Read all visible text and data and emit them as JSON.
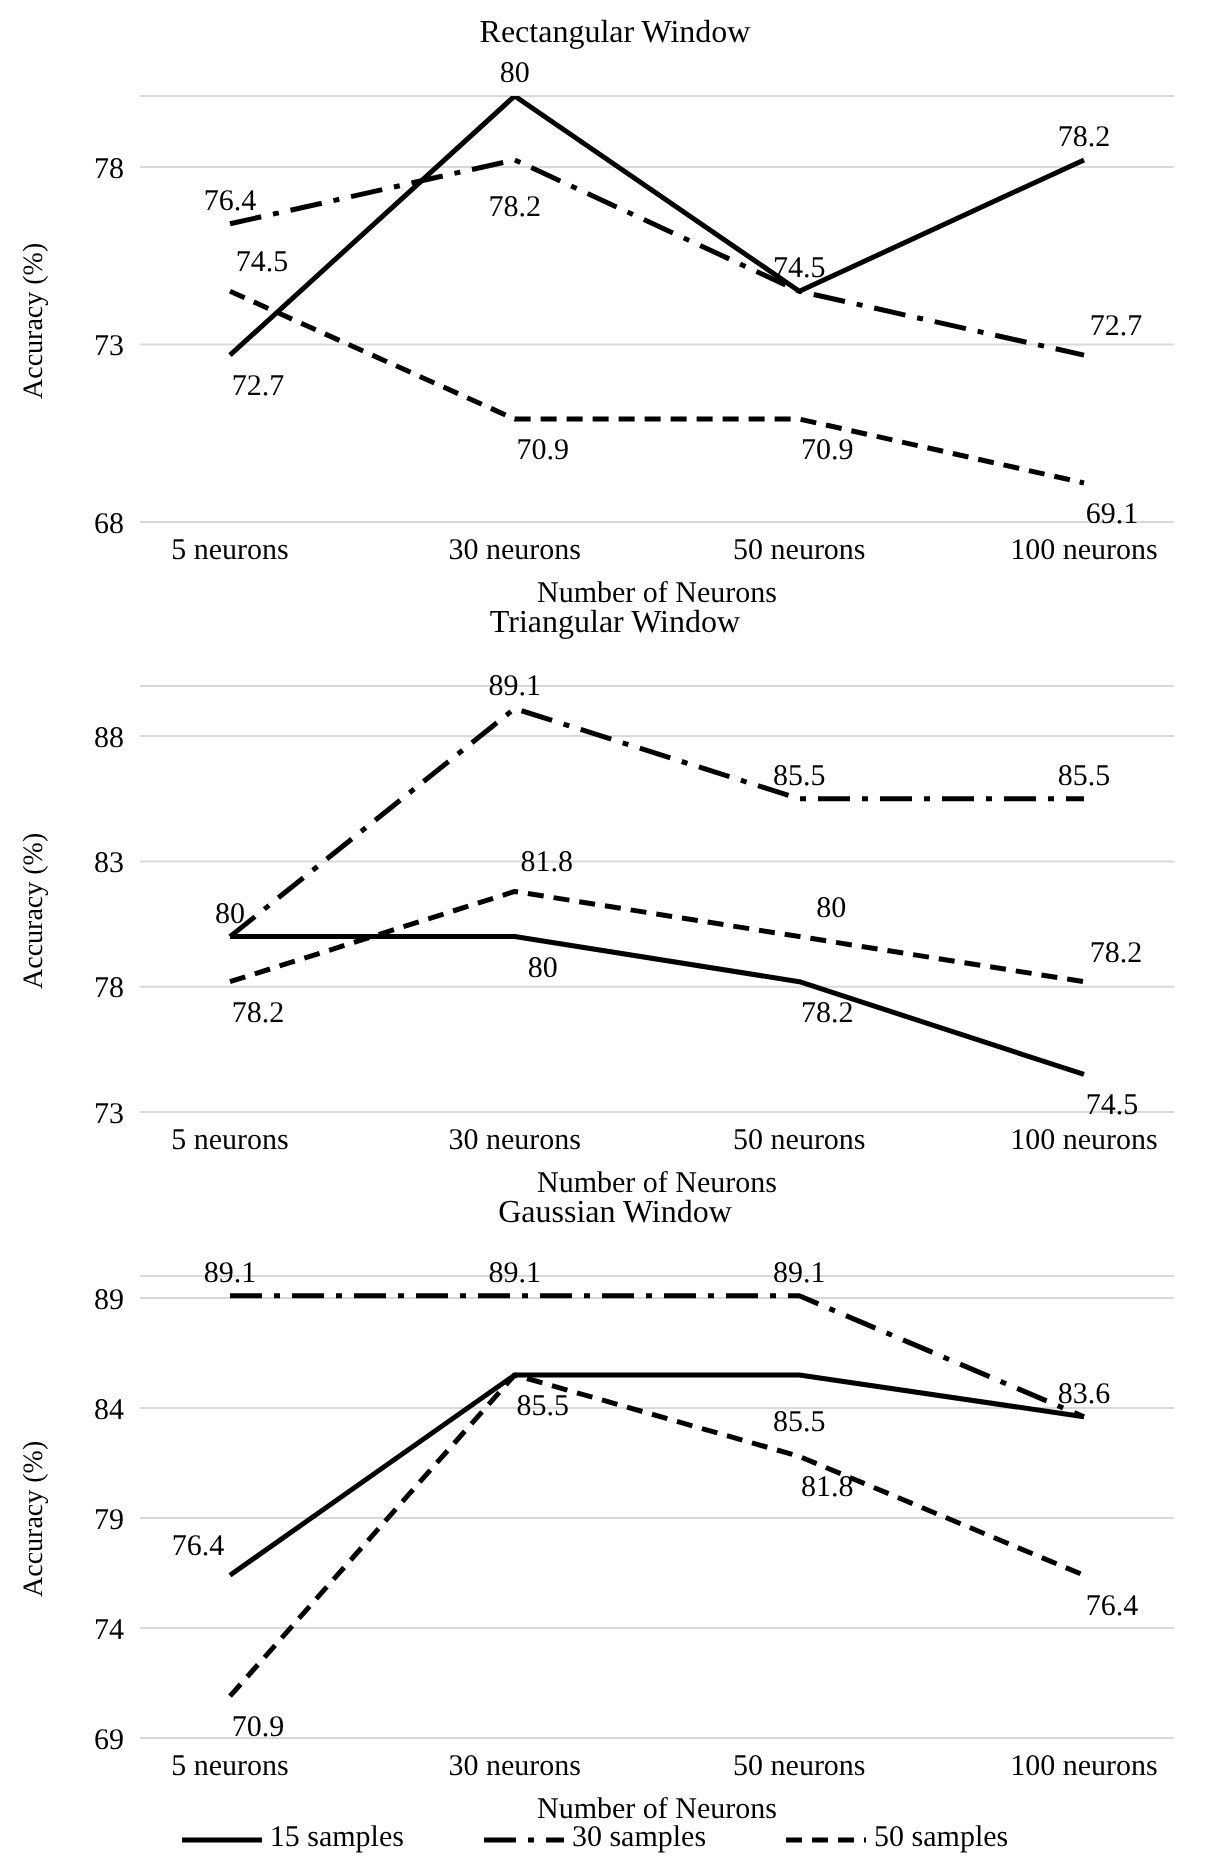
{
  "chart_data": [
    {
      "type": "line",
      "title": "Rectangular Window",
      "xlabel": "Number of Neurons",
      "ylabel": "Accuracy (%)",
      "categories": [
        "5 neurons",
        "30 neurons",
        "50 neurons",
        "100 neurons"
      ],
      "ylim": [
        68,
        80
      ],
      "yticks": [
        68,
        73,
        78
      ],
      "grid": "y",
      "marker": "none",
      "series": [
        {
          "color": "#000000",
          "line_style": "solid",
          "values": [
            72.7,
            80,
            74.5,
            78.2
          ],
          "value_labels": [
            "72.7",
            "80",
            "74.5",
            "78.2"
          ]
        },
        {
          "color": "#000000",
          "line_style": "dashdot",
          "values": [
            76.4,
            78.2,
            74.5,
            72.7
          ],
          "value_labels": [
            "76.4",
            "78.2",
            null,
            "72.7"
          ]
        },
        {
          "color": "#000000",
          "line_style": "dashed",
          "values": [
            74.5,
            70.9,
            70.9,
            69.1
          ],
          "value_labels": [
            "74.5",
            "70.9",
            "70.9",
            "69.1"
          ]
        }
      ]
    },
    {
      "type": "line",
      "title": "Triangular Window",
      "xlabel": "Number of Neurons",
      "ylabel": "Accuracy (%)",
      "categories": [
        "5 neurons",
        "30 neurons",
        "50 neurons",
        "100 neurons"
      ],
      "ylim": [
        73,
        90
      ],
      "yticks": [
        73,
        78,
        83,
        88
      ],
      "grid": "y",
      "marker": "none",
      "series": [
        {
          "color": "#000000",
          "line_style": "solid",
          "values": [
            80,
            80,
            78.2,
            74.5
          ],
          "value_labels": [
            "80",
            "80",
            "78.2",
            "74.5"
          ]
        },
        {
          "color": "#000000",
          "line_style": "dashdot",
          "values": [
            80,
            89.1,
            85.5,
            85.5
          ],
          "value_labels": [
            null,
            "89.1",
            "85.5",
            "85.5"
          ]
        },
        {
          "color": "#000000",
          "line_style": "dashed",
          "values": [
            78.2,
            81.8,
            80,
            78.2
          ],
          "value_labels": [
            "78.2",
            "81.8",
            "80",
            "78.2"
          ]
        }
      ]
    },
    {
      "type": "line",
      "title": "Gaussian Window",
      "xlabel": "Number of Neurons",
      "ylabel": "Accuracy (%)",
      "categories": [
        "5 neurons",
        "30 neurons",
        "50 neurons",
        "100 neurons"
      ],
      "ylim": [
        69,
        90
      ],
      "yticks": [
        69,
        74,
        79,
        84,
        89
      ],
      "grid": "y",
      "marker": "none",
      "legend": "bottom",
      "series": [
        {
          "name": "15 samples",
          "color": "#000000",
          "line_style": "solid",
          "values": [
            76.4,
            85.5,
            85.5,
            83.6
          ],
          "value_labels": [
            "76.4",
            null,
            "85.5",
            "83.6"
          ]
        },
        {
          "name": "30 samples",
          "color": "#000000",
          "line_style": "dashdot",
          "values": [
            89.1,
            89.1,
            89.1,
            83.6
          ],
          "value_labels": [
            "89.1",
            "89.1",
            "89.1",
            null
          ]
        },
        {
          "name": "50 samples",
          "color": "#000000",
          "line_style": "dashed",
          "values": [
            70.9,
            85.5,
            81.8,
            76.4
          ],
          "value_labels": [
            "70.9",
            "85.5",
            "81.8",
            "76.4"
          ]
        }
      ]
    }
  ]
}
